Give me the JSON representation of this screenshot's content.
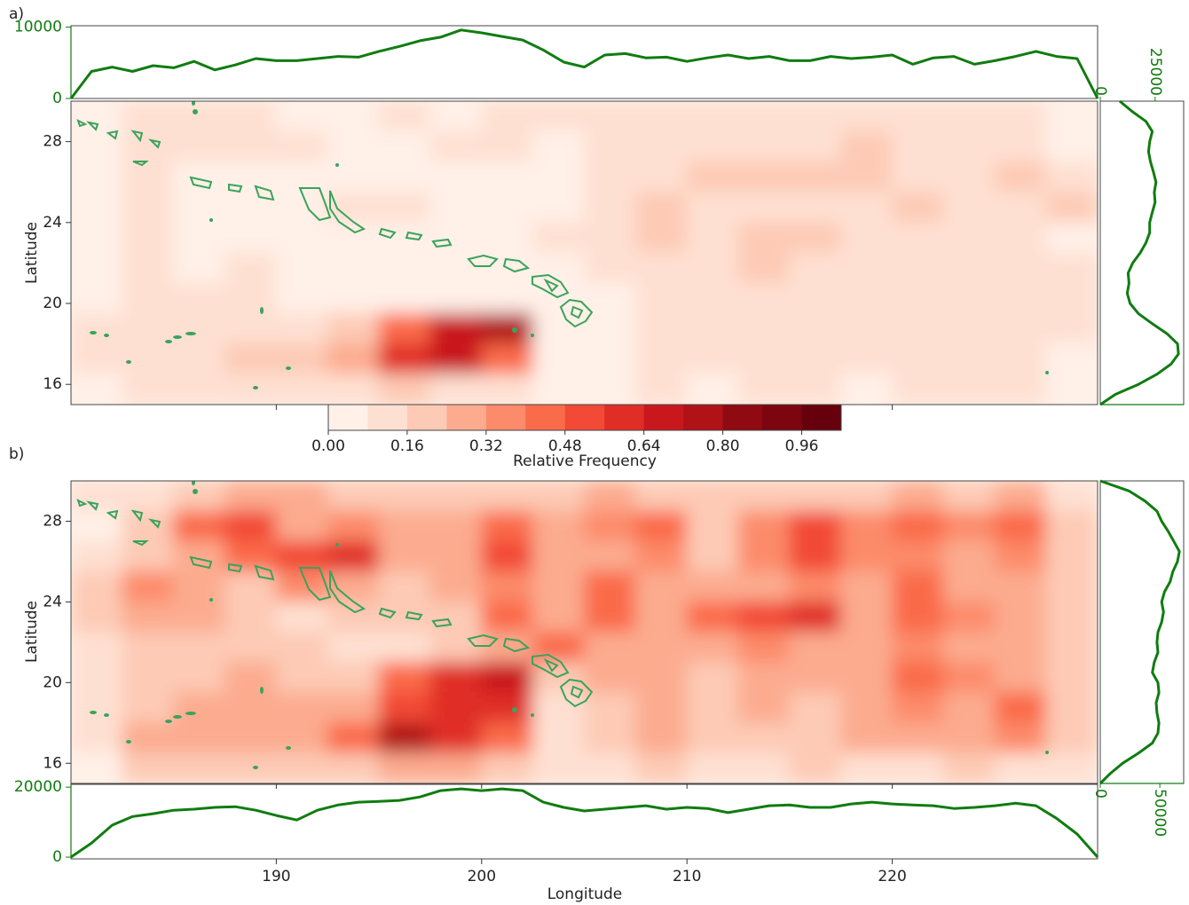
{
  "chart_data": [
    {
      "type": "heatmap",
      "panel_label": "a)",
      "ylabel": "Latitude",
      "x": [
        181.25,
        183.75,
        186.25,
        188.75,
        191.25,
        193.75,
        196.25,
        198.75,
        201.25,
        203.75,
        206.25,
        208.75,
        211.25,
        213.75,
        216.25,
        218.75,
        221.25,
        223.75,
        226.25,
        228.75
      ],
      "y": [
        29.25,
        27.75,
        26.25,
        24.75,
        23.25,
        21.75,
        20.25,
        18.75,
        17.25,
        15.75
      ],
      "values": [
        [
          0.05,
          0.08,
          0.08,
          0.1,
          0.06,
          0.05,
          0.08,
          0.06,
          0.1,
          0.08,
          0.08,
          0.1,
          0.1,
          0.08,
          0.1,
          0.1,
          0.08,
          0.1,
          0.12,
          0.05
        ],
        [
          0.05,
          0.1,
          0.1,
          0.08,
          0.12,
          0.06,
          0.05,
          0.1,
          0.08,
          0.06,
          0.08,
          0.1,
          0.1,
          0.1,
          0.14,
          0.18,
          0.12,
          0.1,
          0.12,
          0.06
        ],
        [
          0.05,
          0.08,
          0.06,
          0.05,
          0.06,
          0.04,
          0.05,
          0.04,
          0.06,
          0.06,
          0.08,
          0.1,
          0.18,
          0.2,
          0.22,
          0.2,
          0.1,
          0.12,
          0.16,
          0.08
        ],
        [
          0.06,
          0.08,
          0.05,
          0.03,
          0.04,
          0.08,
          0.1,
          0.06,
          0.05,
          0.06,
          0.1,
          0.2,
          0.12,
          0.14,
          0.12,
          0.1,
          0.18,
          0.1,
          0.14,
          0.16
        ],
        [
          0.06,
          0.08,
          0.06,
          0.05,
          0.04,
          0.03,
          0.04,
          0.03,
          0.05,
          0.1,
          0.12,
          0.2,
          0.14,
          0.2,
          0.16,
          0.1,
          0.12,
          0.1,
          0.12,
          0.06
        ],
        [
          0.05,
          0.08,
          0.06,
          0.08,
          0.04,
          0.03,
          0.03,
          0.03,
          0.03,
          0.06,
          0.1,
          0.12,
          0.1,
          0.16,
          0.1,
          0.12,
          0.1,
          0.1,
          0.1,
          0.08
        ],
        [
          0.06,
          0.08,
          0.08,
          0.1,
          0.06,
          0.05,
          0.04,
          0.04,
          0.03,
          0.03,
          0.06,
          0.1,
          0.08,
          0.1,
          0.08,
          0.1,
          0.12,
          0.1,
          0.1,
          0.08
        ],
        [
          0.08,
          0.1,
          0.1,
          0.12,
          0.14,
          0.2,
          0.4,
          0.7,
          0.72,
          0.04,
          0.04,
          0.08,
          0.1,
          0.08,
          0.08,
          0.1,
          0.08,
          0.1,
          0.1,
          0.08
        ],
        [
          0.1,
          0.12,
          0.14,
          0.16,
          0.2,
          0.3,
          0.6,
          0.7,
          0.4,
          0.04,
          0.06,
          0.1,
          0.08,
          0.1,
          0.1,
          0.08,
          0.08,
          0.1,
          0.1,
          0.06
        ],
        [
          0.06,
          0.08,
          0.1,
          0.1,
          0.12,
          0.14,
          0.16,
          0.14,
          0.08,
          0.04,
          0.06,
          0.08,
          0.06,
          0.08,
          0.1,
          0.06,
          0.08,
          0.08,
          0.08,
          0.06
        ]
      ],
      "xlim": [
        180,
        230
      ],
      "ylim": [
        15,
        30
      ],
      "yticks": [
        16,
        20,
        24,
        28
      ]
    },
    {
      "type": "line",
      "color": "#107c10",
      "x": [
        180,
        181,
        182,
        183,
        184,
        185,
        186,
        187,
        188,
        189,
        190,
        191,
        192,
        193,
        194,
        195,
        196,
        197,
        198,
        199,
        200,
        201,
        202,
        203,
        204,
        205,
        206,
        207,
        208,
        209,
        210,
        211,
        212,
        213,
        214,
        215,
        216,
        217,
        218,
        219,
        220,
        221,
        222,
        223,
        224,
        225,
        226,
        227,
        228,
        229,
        230
      ],
      "values": [
        0,
        3800,
        4400,
        3800,
        4600,
        4300,
        5200,
        4000,
        4700,
        5600,
        5300,
        5300,
        5600,
        5900,
        5800,
        6600,
        7300,
        8100,
        8600,
        9600,
        9200,
        8700,
        8200,
        6800,
        5100,
        4400,
        6100,
        6300,
        5700,
        5800,
        5200,
        5700,
        6100,
        5600,
        5900,
        5300,
        5300,
        5900,
        5600,
        5800,
        6100,
        4800,
        5700,
        5900,
        4800,
        5300,
        5900,
        6600,
        5900,
        5600,
        0
      ],
      "xlim": [
        180,
        230
      ],
      "ylim": [
        0,
        10200
      ],
      "yticks": [
        0,
        10000
      ]
    },
    {
      "type": "line",
      "color": "#107c10",
      "y": [
        15,
        15.5,
        16,
        16.5,
        17,
        17.5,
        18,
        18.5,
        19,
        19.5,
        20,
        20.5,
        21,
        21.5,
        22,
        22.5,
        23,
        23.5,
        24,
        24.5,
        25,
        25.5,
        26,
        26.5,
        27,
        27.5,
        28,
        28.5,
        29,
        29.5,
        30
      ],
      "values": [
        0,
        6800,
        17400,
        25800,
        32200,
        35600,
        35200,
        30500,
        23700,
        17400,
        13600,
        12300,
        13100,
        12700,
        14800,
        18200,
        20800,
        22500,
        22500,
        23700,
        25000,
        24600,
        25400,
        24200,
        22900,
        22000,
        22500,
        23700,
        20800,
        14400,
        8900
      ],
      "xlim": [
        0,
        38000
      ],
      "ylim": [
        15,
        30
      ],
      "xticks": [
        0,
        25000
      ]
    },
    {
      "type": "colorbar",
      "label": "Relative Frequency",
      "levels": [
        0,
        0.08,
        0.16,
        0.24,
        0.32,
        0.4,
        0.48,
        0.56,
        0.64,
        0.72,
        0.8,
        0.88,
        0.96,
        1.04
      ],
      "colors": [
        "#fff0e8",
        "#fee0d2",
        "#fdcab5",
        "#fcab8f",
        "#fc8b6b",
        "#fa6b4a",
        "#f24a36",
        "#e02e27",
        "#c9181d",
        "#b01217",
        "#900a12",
        "#7c0510",
        "#67000d"
      ],
      "xlim": [
        0,
        1.04
      ],
      "xticks": [
        {
          "value": 0,
          "label": "0.00"
        },
        0.16,
        0.32,
        0.48,
        0.64,
        {
          "value": 0.8,
          "label": "0.80"
        },
        0.96
      ]
    },
    {
      "type": "heatmap",
      "panel_label": "b)",
      "ylabel": "Latitude",
      "x": [
        181.25,
        183.75,
        186.25,
        188.75,
        191.25,
        193.75,
        196.25,
        198.75,
        201.25,
        203.75,
        206.25,
        208.75,
        211.25,
        213.75,
        216.25,
        218.75,
        221.25,
        223.75,
        226.25,
        228.75
      ],
      "y": [
        29.25,
        27.75,
        26.25,
        24.75,
        23.25,
        21.75,
        20.25,
        18.75,
        17.25,
        15.75
      ],
      "values": [
        [
          0.08,
          0.12,
          0.2,
          0.3,
          0.24,
          0.2,
          0.18,
          0.2,
          0.2,
          0.2,
          0.24,
          0.2,
          0.16,
          0.2,
          0.2,
          0.22,
          0.24,
          0.2,
          0.24,
          0.1
        ],
        [
          0.06,
          0.2,
          0.4,
          0.5,
          0.3,
          0.36,
          0.3,
          0.3,
          0.4,
          0.3,
          0.36,
          0.4,
          0.2,
          0.36,
          0.5,
          0.36,
          0.44,
          0.36,
          0.44,
          0.2
        ],
        [
          0.1,
          0.2,
          0.3,
          0.4,
          0.5,
          0.6,
          0.3,
          0.3,
          0.48,
          0.3,
          0.3,
          0.36,
          0.2,
          0.36,
          0.52,
          0.36,
          0.36,
          0.3,
          0.36,
          0.2
        ],
        [
          0.16,
          0.36,
          0.3,
          0.2,
          0.36,
          0.3,
          0.2,
          0.3,
          0.36,
          0.3,
          0.4,
          0.3,
          0.3,
          0.3,
          0.36,
          0.3,
          0.4,
          0.3,
          0.3,
          0.2
        ],
        [
          0.16,
          0.3,
          0.3,
          0.2,
          0.1,
          0.2,
          0.2,
          0.2,
          0.4,
          0.3,
          0.44,
          0.3,
          0.4,
          0.5,
          0.56,
          0.3,
          0.4,
          0.36,
          0.3,
          0.2
        ],
        [
          0.1,
          0.2,
          0.2,
          0.2,
          0.16,
          0.1,
          0.1,
          0.2,
          0.3,
          0.4,
          0.3,
          0.3,
          0.24,
          0.36,
          0.3,
          0.3,
          0.36,
          0.3,
          0.3,
          0.2
        ],
        [
          0.1,
          0.2,
          0.2,
          0.24,
          0.16,
          0.2,
          0.4,
          0.6,
          0.7,
          0.2,
          0.3,
          0.3,
          0.2,
          0.3,
          0.24,
          0.3,
          0.4,
          0.36,
          0.3,
          0.2
        ],
        [
          0.12,
          0.2,
          0.24,
          0.3,
          0.24,
          0.3,
          0.5,
          0.6,
          0.6,
          0.1,
          0.2,
          0.3,
          0.2,
          0.24,
          0.2,
          0.3,
          0.36,
          0.3,
          0.4,
          0.2
        ],
        [
          0.12,
          0.3,
          0.3,
          0.3,
          0.3,
          0.4,
          0.76,
          0.6,
          0.4,
          0.1,
          0.2,
          0.24,
          0.2,
          0.2,
          0.2,
          0.24,
          0.3,
          0.3,
          0.36,
          0.16
        ],
        [
          0.06,
          0.16,
          0.2,
          0.2,
          0.16,
          0.2,
          0.3,
          0.3,
          0.2,
          0.1,
          0.1,
          0.16,
          0.1,
          0.14,
          0.16,
          0.14,
          0.14,
          0.16,
          0.14,
          0.1
        ]
      ],
      "xlim": [
        180,
        230
      ],
      "ylim": [
        15,
        30
      ],
      "yticks": [
        16,
        20,
        24,
        28
      ]
    },
    {
      "type": "line",
      "color": "#107c10",
      "y": [
        15,
        15.5,
        16,
        16.5,
        17,
        17.5,
        18,
        18.5,
        19,
        19.5,
        20,
        20.5,
        21,
        21.5,
        22,
        22.5,
        23,
        23.5,
        24,
        24.5,
        25,
        25.5,
        26,
        26.5,
        27,
        27.5,
        28,
        28.5,
        29,
        29.5,
        30
      ],
      "values": [
        0,
        8600,
        18700,
        32000,
        43700,
        48400,
        49200,
        47600,
        46900,
        49200,
        48400,
        43700,
        45300,
        48400,
        47600,
        48400,
        51500,
        53100,
        51500,
        53900,
        58600,
        60900,
        64800,
        66400,
        61700,
        57000,
        51500,
        47600,
        37500,
        24200,
        0
      ],
      "xlim": [
        0,
        70000
      ],
      "ylim": [
        15,
        30
      ],
      "xticks": [
        0,
        50000
      ]
    },
    {
      "type": "line",
      "color": "#107c10",
      "xlabel": "Longitude",
      "x": [
        180,
        181,
        182,
        183,
        184,
        185,
        186,
        187,
        188,
        189,
        190,
        191,
        192,
        193,
        194,
        195,
        196,
        197,
        198,
        199,
        200,
        201,
        202,
        203,
        204,
        205,
        206,
        207,
        208,
        209,
        210,
        211,
        212,
        213,
        214,
        215,
        216,
        217,
        218,
        219,
        220,
        221,
        222,
        223,
        224,
        225,
        226,
        227,
        228,
        229,
        230
      ],
      "values": [
        0,
        4000,
        9100,
        11600,
        12400,
        13400,
        13700,
        14200,
        14400,
        13400,
        11900,
        10600,
        13400,
        14900,
        15700,
        15900,
        16200,
        17200,
        19000,
        19500,
        19000,
        19500,
        19000,
        15700,
        14200,
        13200,
        13700,
        14200,
        14700,
        13700,
        14200,
        13900,
        12700,
        13700,
        14700,
        14900,
        14200,
        14200,
        15200,
        15700,
        15200,
        14900,
        14700,
        13900,
        14200,
        14700,
        15400,
        14700,
        11100,
        6600,
        0
      ],
      "xlim": [
        180,
        230
      ],
      "ylim": [
        -500,
        20800
      ],
      "yticks": [
        0,
        20000
      ],
      "xticks": [
        190,
        200,
        210,
        220
      ]
    }
  ]
}
